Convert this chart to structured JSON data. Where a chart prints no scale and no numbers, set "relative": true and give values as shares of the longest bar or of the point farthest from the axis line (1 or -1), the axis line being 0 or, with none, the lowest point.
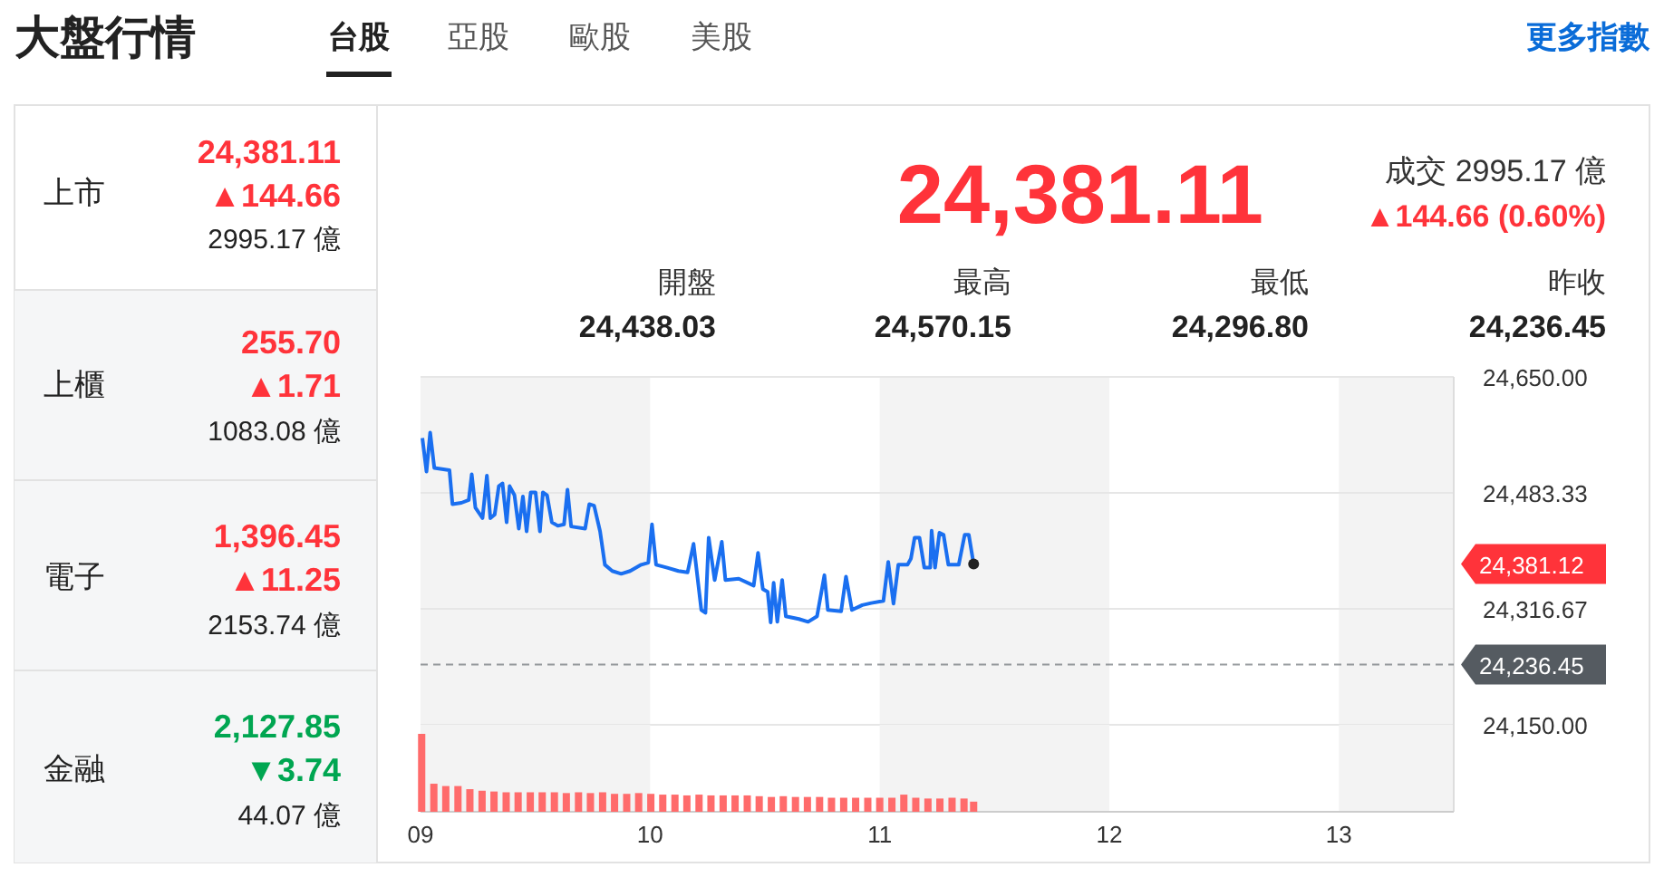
{
  "chart_data": [
    {
      "type": "other",
      "title": "大盤行情",
      "annotations": [
        "台股",
        "亞股",
        "歐股",
        "美股",
        "更多指數",
        "上市",
        "24,381.11",
        "▲144.66",
        "2995.17 億",
        "上櫃",
        "255.70",
        "▲1.71",
        "1083.08 億",
        "電子",
        "1,396.45",
        "▲11.25",
        "2153.74 億",
        "金融",
        "2,127.85",
        "▼3.74",
        "44.07 億",
        "24,381.11",
        "成交 2995.17 億",
        "▲144.66 (0.60%)",
        "開盤",
        "24,438.03",
        "最高",
        "24,570.15",
        "最低",
        "24,296.80",
        "昨收",
        "24,236.45"
      ]
    },
    {
      "type": "line",
      "tick_labels": "y",
      "grid": "y",
      "line_style": "solid",
      "marker": "none",
      "xlim": [
        9,
        13.5
      ],
      "ylim": [
        24150,
        24650
      ],
      "yticks": [
        {
          "value": 24650,
          "label": "24,650.00"
        },
        {
          "value": 24483.33,
          "label": "24,483.33"
        },
        {
          "value": 24316.67,
          "label": "24,316.67"
        },
        {
          "value": 24150,
          "label": "24,150.00"
        }
      ],
      "bands": [
        {
          "axis": "x",
          "from": 9,
          "to": 10,
          "color": "#f3f3f3"
        },
        {
          "axis": "x",
          "from": 11,
          "to": 12,
          "color": "#f3f3f3"
        },
        {
          "axis": "x",
          "from": 13,
          "to": 13.5,
          "color": "#f3f3f3"
        }
      ],
      "ref_lines": [
        {
          "axis": "y",
          "value": 24236.45,
          "label": "24,236.45",
          "color": "#555b61",
          "line_style": "dashed"
        }
      ],
      "annotations": [
        "24,381.12"
      ],
      "series": [
        {
          "color": "#1a6ff0",
          "x": [
            9.008,
            9.026,
            9.042,
            9.06,
            9.126,
            9.139,
            9.178,
            9.21,
            9.223,
            9.239,
            9.27,
            9.289,
            9.304,
            9.323,
            9.341,
            9.357,
            9.375,
            9.388,
            9.409,
            9.428,
            9.446,
            9.462,
            9.48,
            9.501,
            9.52,
            9.533,
            9.551,
            9.572,
            9.598,
            9.625,
            9.64,
            9.656,
            9.717,
            9.735,
            9.756,
            9.782,
            9.803,
            9.835,
            9.874,
            9.913,
            9.961,
            9.992,
            10.008,
            10.026,
            10.071,
            10.123,
            10.163,
            10.189,
            10.223,
            10.241,
            10.255,
            10.281,
            10.312,
            10.328,
            10.386,
            10.451,
            10.47,
            10.491,
            10.512,
            10.525,
            10.538,
            10.554,
            10.575,
            10.591,
            10.648,
            10.688,
            10.727,
            10.759,
            10.774,
            10.832,
            10.853,
            10.879,
            10.924,
            10.963,
            11.016,
            11.037,
            11.06,
            11.081,
            11.121,
            11.136,
            11.152,
            11.173,
            11.194,
            11.22,
            11.226,
            11.241,
            11.26,
            11.278,
            11.299,
            11.344,
            11.37,
            11.388,
            11.409
          ],
          "values": [
            24562,
            24514,
            24570,
            24519,
            24516,
            24467,
            24469,
            24473,
            24510,
            24462,
            24447,
            24508,
            24447,
            24452,
            24493,
            24497,
            24441,
            24493,
            24480,
            24432,
            24478,
            24428,
            24484,
            24484,
            24428,
            24484,
            24480,
            24441,
            24436,
            24438,
            24488,
            24435,
            24432,
            24467,
            24465,
            24428,
            24380,
            24371,
            24367,
            24371,
            24380,
            24383,
            24438,
            24380,
            24376,
            24371,
            24369,
            24410,
            24315,
            24311,
            24419,
            24358,
            24413,
            24358,
            24360,
            24350,
            24397,
            24345,
            24341,
            24297,
            24354,
            24298,
            24358,
            24306,
            24302,
            24298,
            24306,
            24365,
            24315,
            24313,
            24363,
            24315,
            24322,
            24325,
            24328,
            24384,
            24324,
            24380,
            24380,
            24389,
            24419,
            24419,
            24376,
            24376,
            24429,
            24376,
            24426,
            24423,
            24380,
            24380,
            24423,
            24423,
            24381
          ]
        }
      ]
    },
    {
      "type": "bar",
      "relative": true,
      "xlim": [
        9,
        13.5
      ],
      "tick_labels": "x",
      "xticks": [
        {
          "value": 9,
          "label": "09"
        },
        {
          "value": 10,
          "label": "10"
        },
        {
          "value": 11,
          "label": "11"
        },
        {
          "value": 12,
          "label": "12"
        },
        {
          "value": 13,
          "label": "13"
        }
      ],
      "bands": [
        {
          "axis": "x",
          "from": 9,
          "to": 10,
          "color": "#f3f3f3"
        },
        {
          "axis": "x",
          "from": 11,
          "to": 12,
          "color": "#f3f3f3"
        },
        {
          "axis": "x",
          "from": 13,
          "to": 13.5,
          "color": "#f3f3f3"
        }
      ],
      "series": [
        {
          "color": "#ff6b6b",
          "x": [
            9.005,
            9.058,
            9.11,
            9.163,
            9.215,
            9.268,
            9.32,
            9.373,
            9.425,
            9.478,
            9.53,
            9.583,
            9.635,
            9.688,
            9.74,
            9.793,
            9.845,
            9.898,
            9.95,
            10.003,
            10.055,
            10.108,
            10.16,
            10.213,
            10.265,
            10.318,
            10.37,
            10.423,
            10.475,
            10.528,
            10.58,
            10.633,
            10.685,
            10.738,
            10.79,
            10.843,
            10.895,
            10.948,
            11.0,
            11.053,
            11.105,
            11.157,
            11.21,
            11.262,
            11.315,
            11.367,
            11.409
          ],
          "values": [
            1.0,
            0.36,
            0.33,
            0.33,
            0.29,
            0.27,
            0.26,
            0.25,
            0.25,
            0.25,
            0.25,
            0.25,
            0.24,
            0.25,
            0.24,
            0.25,
            0.23,
            0.23,
            0.24,
            0.23,
            0.22,
            0.22,
            0.21,
            0.22,
            0.21,
            0.21,
            0.21,
            0.21,
            0.2,
            0.19,
            0.2,
            0.19,
            0.19,
            0.19,
            0.18,
            0.18,
            0.18,
            0.18,
            0.18,
            0.18,
            0.22,
            0.18,
            0.17,
            0.17,
            0.18,
            0.17,
            0.13
          ]
        }
      ]
    }
  ]
}
